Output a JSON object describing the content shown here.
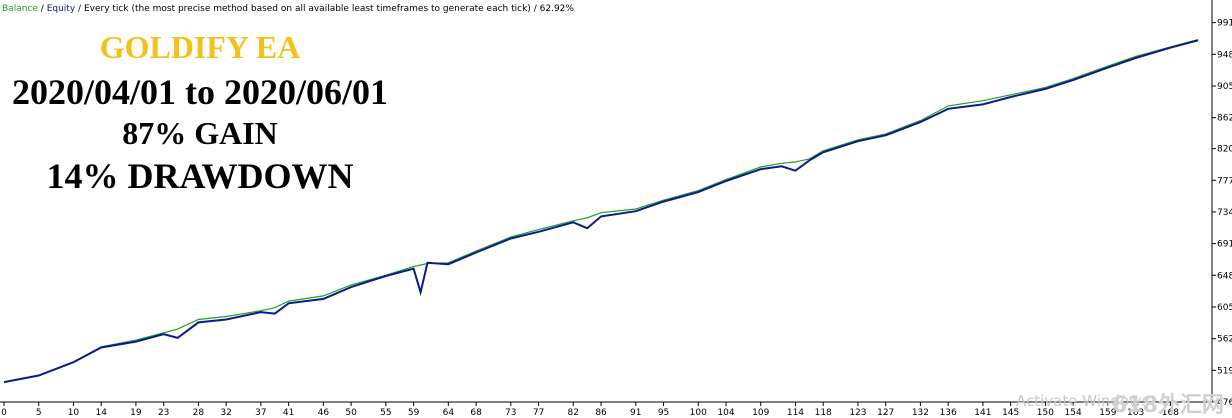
{
  "chart_data": {
    "type": "line",
    "header": {
      "separator": "/",
      "method": "Every tick (the most precise method based on all available least timeframes to generate each tick)",
      "percent": "62.92%"
    },
    "annotations": [
      {
        "text": "GOLDIFY EA",
        "color": "#f2c21b"
      },
      {
        "text": "2020/04/01 to 2020/06/01",
        "color": "#000000"
      },
      {
        "text": "87% GAIN",
        "color": "#000000"
      },
      {
        "text": "14% DRAWDOWN",
        "color": "#000000"
      }
    ],
    "watermarks": [
      "Activate Windows",
      "618外汇网"
    ],
    "x": [
      0,
      5,
      10,
      14,
      19,
      23,
      25,
      28,
      32,
      37,
      39,
      41,
      46,
      50,
      55,
      59,
      60,
      61,
      64,
      68,
      73,
      77,
      82,
      84,
      86,
      91,
      95,
      100,
      104,
      109,
      112,
      114,
      116,
      118,
      123,
      127,
      132,
      136,
      141,
      145,
      150,
      154,
      159,
      163,
      168,
      172
    ],
    "series": [
      {
        "name": "Balance",
        "color": "#1fa01f",
        "values": [
          503,
          512,
          530,
          551,
          560,
          570,
          575,
          588,
          592,
          600,
          604,
          613,
          620,
          635,
          648,
          660,
          662,
          664,
          665,
          681,
          700,
          710,
          722,
          726,
          733,
          738,
          750,
          763,
          778,
          795,
          800,
          802,
          806,
          817,
          832,
          840,
          858,
          878,
          885,
          893,
          903,
          915,
          932,
          945,
          958,
          968
        ]
      },
      {
        "name": "Equity",
        "color": "#0a1a8c",
        "values": [
          503,
          512,
          530,
          550,
          558,
          568,
          563,
          584,
          588,
          598,
          596,
          610,
          616,
          632,
          647,
          657,
          625,
          665,
          663,
          679,
          698,
          707,
          720,
          712,
          728,
          735,
          748,
          761,
          776,
          792,
          796,
          790,
          804,
          815,
          830,
          838,
          856,
          874,
          880,
          890,
          901,
          913,
          930,
          943,
          957,
          967
        ]
      }
    ],
    "xlim": [
      0,
      174
    ],
    "xticks": [
      0,
      5,
      10,
      14,
      19,
      23,
      28,
      32,
      37,
      41,
      46,
      50,
      55,
      59,
      64,
      68,
      73,
      77,
      82,
      86,
      91,
      95,
      100,
      104,
      109,
      114,
      118,
      123,
      127,
      132,
      136,
      141,
      145,
      150,
      154,
      159,
      163,
      168
    ],
    "ylim": [
      476,
      1019
    ],
    "yticks": [
      476,
      519,
      562,
      605,
      648,
      691,
      734,
      777,
      820,
      862,
      905,
      948,
      991
    ]
  }
}
